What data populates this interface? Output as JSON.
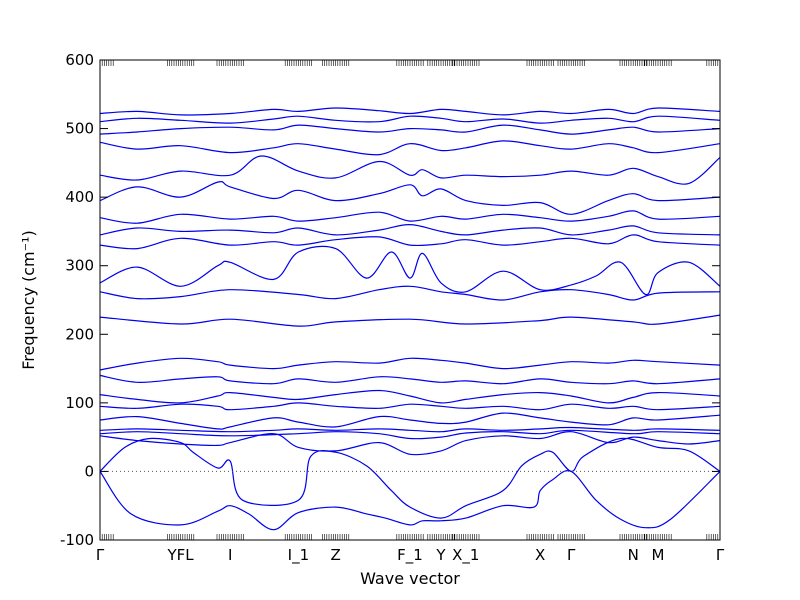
{
  "chart_data": {
    "type": "line",
    "title": "",
    "xlabel": "Wave vector",
    "ylabel": "Frequency (cm⁻¹)",
    "ylim": [
      -100,
      600
    ],
    "y_ticks": [
      -100,
      0,
      100,
      200,
      300,
      400,
      500,
      600
    ],
    "x_ticks": [
      "Γ",
      "YFL",
      "I",
      "I_1",
      "Z",
      "F_1",
      "Y",
      "X_1",
      "X",
      "Γ",
      "N",
      "M",
      "Γ"
    ],
    "x_tick_positions": [
      0,
      0.13,
      0.21,
      0.32,
      0.38,
      0.5,
      0.55,
      0.59,
      0.71,
      0.76,
      0.86,
      0.9,
      1.0
    ],
    "zero_line": true,
    "grid": false,
    "legend": "none",
    "colors": {
      "bands": "#0000ee",
      "zero_line": "#555555"
    },
    "series": [
      {
        "x": [
          0,
          0.05,
          0.13,
          0.19,
          0.21,
          0.24,
          0.28,
          0.32,
          0.38,
          0.43,
          0.46,
          0.5,
          0.52,
          0.55,
          0.59,
          0.65,
          0.7,
          0.71,
          0.73,
          0.76,
          0.8,
          0.84,
          0.88,
          0.92,
          1.0
        ],
        "y": [
          0,
          -62,
          -78,
          -58,
          -50,
          -62,
          -85,
          -60,
          -52,
          -62,
          -68,
          -78,
          -72,
          -72,
          -68,
          -50,
          -52,
          -28,
          -12,
          0,
          -42,
          -70,
          -82,
          -70,
          0
        ]
      },
      {
        "x": [
          0,
          0.04,
          0.08,
          0.13,
          0.15,
          0.19,
          0.21,
          0.23,
          0.32,
          0.34,
          0.38,
          0.43,
          0.47,
          0.5,
          0.55,
          0.59,
          0.65,
          0.68,
          0.71,
          0.73,
          0.76,
          0.78,
          0.84,
          0.9,
          0.95,
          1.0
        ],
        "y": [
          0,
          35,
          48,
          42,
          28,
          5,
          15,
          -42,
          -42,
          22,
          28,
          8,
          -28,
          -52,
          -68,
          -50,
          -28,
          8,
          25,
          28,
          0,
          22,
          48,
          35,
          30,
          0
        ]
      },
      {
        "x": [
          0,
          0.06,
          0.13,
          0.19,
          0.21,
          0.28,
          0.32,
          0.38,
          0.45,
          0.5,
          0.55,
          0.59,
          0.65,
          0.71,
          0.76,
          0.82,
          0.86,
          0.9,
          0.95,
          1.0
        ],
        "y": [
          52,
          45,
          40,
          38,
          42,
          55,
          35,
          30,
          42,
          25,
          30,
          45,
          52,
          48,
          58,
          42,
          50,
          45,
          40,
          45
        ]
      },
      {
        "x": [
          0,
          0.06,
          0.13,
          0.21,
          0.32,
          0.38,
          0.45,
          0.5,
          0.55,
          0.59,
          0.65,
          0.71,
          0.76,
          0.86,
          0.9,
          1.0
        ],
        "y": [
          55,
          58,
          55,
          52,
          55,
          58,
          55,
          48,
          50,
          56,
          58,
          55,
          60,
          55,
          58,
          55
        ]
      },
      {
        "x": [
          0,
          0.06,
          0.13,
          0.21,
          0.28,
          0.32,
          0.38,
          0.45,
          0.5,
          0.55,
          0.59,
          0.65,
          0.71,
          0.76,
          0.86,
          0.9,
          1.0
        ],
        "y": [
          60,
          62,
          60,
          58,
          60,
          62,
          60,
          62,
          60,
          58,
          62,
          60,
          62,
          64,
          60,
          62,
          60
        ]
      },
      {
        "x": [
          0,
          0.06,
          0.13,
          0.19,
          0.21,
          0.28,
          0.32,
          0.38,
          0.45,
          0.5,
          0.55,
          0.59,
          0.65,
          0.71,
          0.76,
          0.82,
          0.86,
          0.9,
          1.0
        ],
        "y": [
          75,
          80,
          70,
          62,
          65,
          78,
          72,
          65,
          80,
          75,
          70,
          72,
          85,
          78,
          72,
          68,
          78,
          75,
          82
        ]
      },
      {
        "x": [
          0,
          0.06,
          0.13,
          0.19,
          0.21,
          0.28,
          0.32,
          0.38,
          0.45,
          0.5,
          0.55,
          0.59,
          0.65,
          0.71,
          0.76,
          0.82,
          0.86,
          0.9,
          1.0
        ],
        "y": [
          95,
          92,
          98,
          95,
          90,
          95,
          100,
          95,
          92,
          98,
          95,
          92,
          95,
          90,
          98,
          92,
          95,
          90,
          95
        ]
      },
      {
        "x": [
          0,
          0.06,
          0.13,
          0.19,
          0.21,
          0.28,
          0.32,
          0.38,
          0.45,
          0.5,
          0.55,
          0.59,
          0.65,
          0.71,
          0.76,
          0.82,
          0.86,
          0.9,
          1.0
        ],
        "y": [
          112,
          105,
          100,
          110,
          115,
          108,
          105,
          112,
          118,
          110,
          100,
          105,
          112,
          115,
          110,
          100,
          108,
          115,
          110
        ]
      },
      {
        "x": [
          0,
          0.06,
          0.13,
          0.19,
          0.21,
          0.28,
          0.32,
          0.38,
          0.45,
          0.5,
          0.55,
          0.59,
          0.65,
          0.71,
          0.76,
          0.82,
          0.86,
          0.9,
          1.0
        ],
        "y": [
          140,
          130,
          135,
          138,
          132,
          128,
          135,
          130,
          138,
          135,
          130,
          132,
          128,
          135,
          130,
          128,
          132,
          128,
          135
        ]
      },
      {
        "x": [
          0,
          0.06,
          0.13,
          0.19,
          0.21,
          0.28,
          0.32,
          0.38,
          0.45,
          0.5,
          0.55,
          0.59,
          0.65,
          0.71,
          0.76,
          0.82,
          0.86,
          0.9,
          1.0
        ],
        "y": [
          148,
          158,
          165,
          160,
          155,
          150,
          155,
          160,
          158,
          165,
          162,
          158,
          150,
          155,
          160,
          158,
          162,
          160,
          155
        ]
      },
      {
        "x": [
          0,
          0.13,
          0.21,
          0.32,
          0.38,
          0.5,
          0.59,
          0.71,
          0.76,
          0.86,
          0.9,
          1.0
        ],
        "y": [
          225,
          215,
          222,
          212,
          218,
          222,
          215,
          220,
          225,
          218,
          215,
          228
        ]
      },
      {
        "x": [
          0,
          0.06,
          0.13,
          0.21,
          0.32,
          0.38,
          0.45,
          0.5,
          0.55,
          0.59,
          0.65,
          0.71,
          0.76,
          0.82,
          0.86,
          0.9,
          1.0
        ],
        "y": [
          262,
          252,
          255,
          265,
          258,
          252,
          265,
          270,
          262,
          258,
          250,
          262,
          265,
          258,
          250,
          260,
          262
        ]
      },
      {
        "x": [
          0,
          0.06,
          0.13,
          0.19,
          0.21,
          0.28,
          0.32,
          0.38,
          0.43,
          0.47,
          0.5,
          0.52,
          0.55,
          0.59,
          0.65,
          0.71,
          0.76,
          0.8,
          0.84,
          0.88,
          0.9,
          0.95,
          1.0
        ],
        "y": [
          275,
          298,
          270,
          300,
          305,
          280,
          320,
          325,
          282,
          320,
          282,
          318,
          275,
          262,
          292,
          265,
          272,
          285,
          305,
          258,
          290,
          305,
          270
        ]
      },
      {
        "x": [
          0,
          0.06,
          0.13,
          0.21,
          0.28,
          0.32,
          0.38,
          0.45,
          0.5,
          0.55,
          0.59,
          0.65,
          0.71,
          0.76,
          0.82,
          0.86,
          0.9,
          1.0
        ],
        "y": [
          330,
          325,
          340,
          330,
          335,
          330,
          338,
          342,
          330,
          332,
          338,
          330,
          335,
          340,
          332,
          345,
          335,
          330
        ]
      },
      {
        "x": [
          0,
          0.06,
          0.13,
          0.21,
          0.28,
          0.32,
          0.38,
          0.45,
          0.5,
          0.55,
          0.59,
          0.65,
          0.71,
          0.76,
          0.82,
          0.86,
          0.9,
          1.0
        ],
        "y": [
          345,
          355,
          350,
          352,
          348,
          355,
          345,
          352,
          360,
          350,
          345,
          352,
          355,
          345,
          352,
          358,
          348,
          345
        ]
      },
      {
        "x": [
          0,
          0.06,
          0.13,
          0.21,
          0.28,
          0.32,
          0.38,
          0.45,
          0.5,
          0.55,
          0.59,
          0.65,
          0.71,
          0.76,
          0.82,
          0.86,
          0.9,
          1.0
        ],
        "y": [
          370,
          362,
          375,
          368,
          372,
          365,
          370,
          378,
          365,
          372,
          368,
          375,
          370,
          365,
          372,
          380,
          368,
          372
        ]
      },
      {
        "x": [
          0,
          0.06,
          0.13,
          0.19,
          0.21,
          0.28,
          0.32,
          0.38,
          0.45,
          0.5,
          0.52,
          0.55,
          0.59,
          0.65,
          0.71,
          0.76,
          0.82,
          0.86,
          0.9,
          1.0
        ],
        "y": [
          395,
          415,
          400,
          422,
          415,
          398,
          410,
          395,
          405,
          418,
          402,
          412,
          395,
          388,
          392,
          375,
          395,
          405,
          395,
          400
        ]
      },
      {
        "x": [
          0,
          0.06,
          0.13,
          0.21,
          0.26,
          0.32,
          0.38,
          0.45,
          0.5,
          0.52,
          0.55,
          0.59,
          0.65,
          0.71,
          0.76,
          0.82,
          0.86,
          0.9,
          0.95,
          1.0
        ],
        "y": [
          432,
          425,
          438,
          432,
          460,
          438,
          428,
          452,
          432,
          440,
          428,
          432,
          430,
          432,
          438,
          432,
          442,
          430,
          420,
          458
        ]
      },
      {
        "x": [
          0,
          0.06,
          0.13,
          0.21,
          0.28,
          0.32,
          0.38,
          0.45,
          0.5,
          0.55,
          0.59,
          0.65,
          0.71,
          0.76,
          0.82,
          0.86,
          0.9,
          1.0
        ],
        "y": [
          480,
          470,
          475,
          465,
          472,
          478,
          470,
          462,
          478,
          468,
          472,
          482,
          475,
          470,
          478,
          472,
          465,
          478
        ]
      },
      {
        "x": [
          0,
          0.06,
          0.13,
          0.21,
          0.28,
          0.32,
          0.38,
          0.45,
          0.5,
          0.55,
          0.59,
          0.65,
          0.71,
          0.76,
          0.82,
          0.86,
          0.9,
          1.0
        ],
        "y": [
          492,
          495,
          500,
          502,
          498,
          505,
          500,
          495,
          500,
          498,
          495,
          505,
          498,
          492,
          498,
          502,
          495,
          500
        ]
      },
      {
        "x": [
          0,
          0.06,
          0.13,
          0.21,
          0.28,
          0.32,
          0.38,
          0.45,
          0.5,
          0.55,
          0.59,
          0.65,
          0.71,
          0.76,
          0.82,
          0.86,
          0.9,
          1.0
        ],
        "y": [
          510,
          515,
          512,
          508,
          514,
          518,
          512,
          510,
          518,
          515,
          510,
          514,
          508,
          512,
          515,
          510,
          518,
          512
        ]
      },
      {
        "x": [
          0,
          0.06,
          0.13,
          0.21,
          0.28,
          0.32,
          0.38,
          0.45,
          0.5,
          0.55,
          0.59,
          0.65,
          0.71,
          0.76,
          0.82,
          0.86,
          0.9,
          1.0
        ],
        "y": [
          522,
          525,
          520,
          522,
          528,
          525,
          530,
          526,
          522,
          528,
          525,
          520,
          525,
          522,
          528,
          522,
          530,
          525
        ]
      }
    ]
  }
}
